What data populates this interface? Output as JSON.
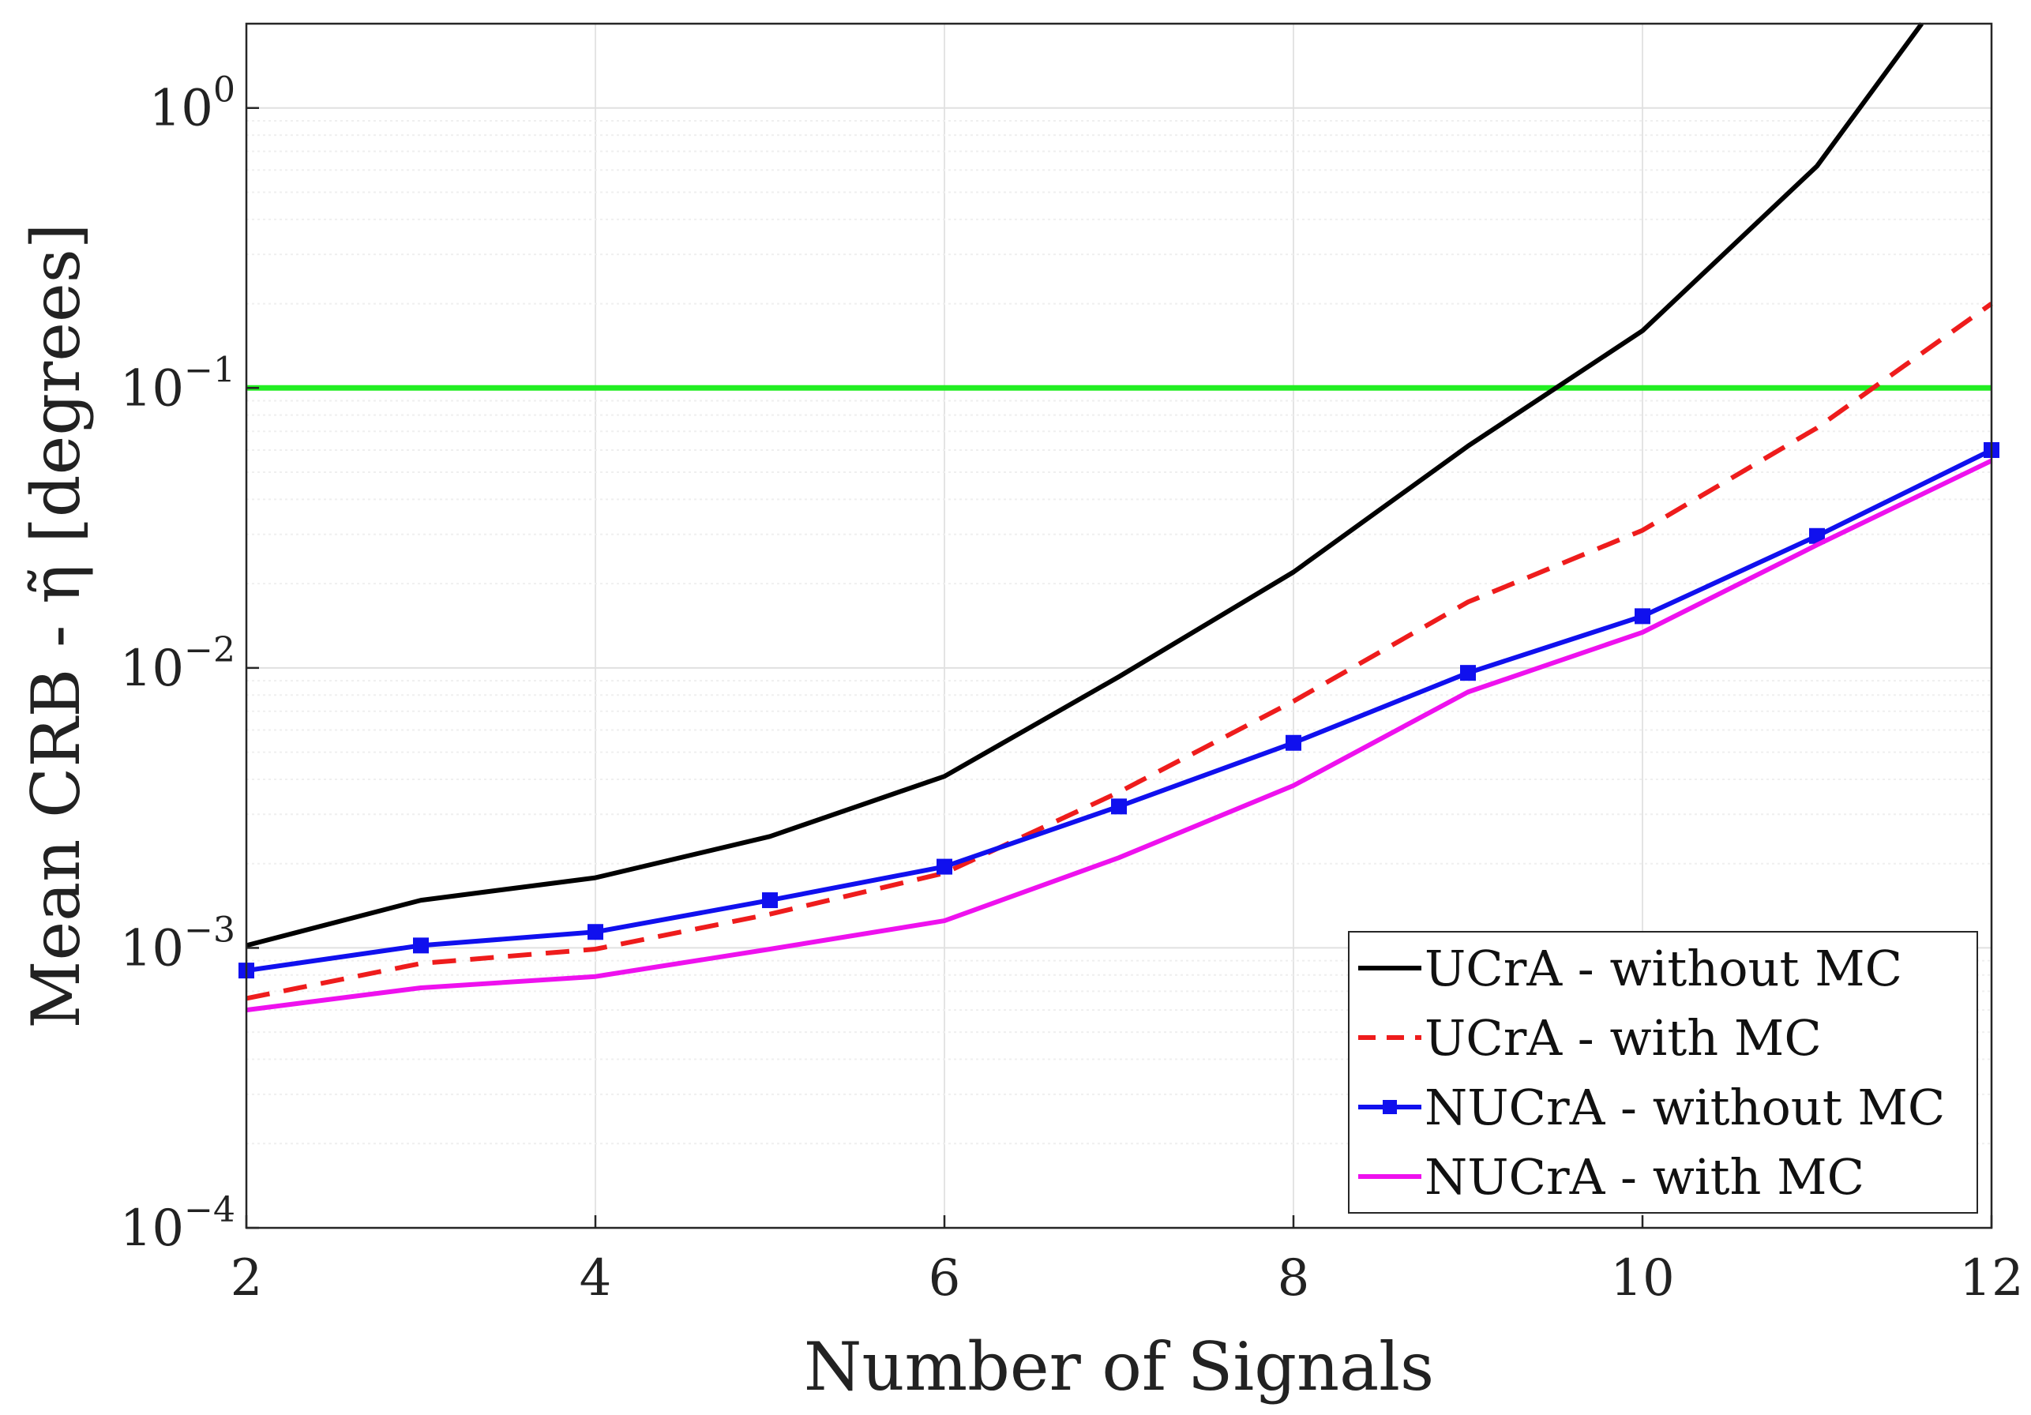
{
  "chart_data": {
    "type": "line",
    "title": "",
    "xlabel": "Number of Signals",
    "ylabel": "Mean CRB - η̃ [degrees]",
    "xlim": [
      2,
      12
    ],
    "ylim": [
      0.0001,
      2
    ],
    "yscale": "log",
    "grid": true,
    "x_ticks": [
      {
        "value": 2,
        "label": "2"
      },
      {
        "value": 4,
        "label": "4"
      },
      {
        "value": 6,
        "label": "6"
      },
      {
        "value": 8,
        "label": "8"
      },
      {
        "value": 10,
        "label": "10"
      },
      {
        "value": 12,
        "label": "12"
      }
    ],
    "y_ticks": [
      {
        "value": 1,
        "base": "10",
        "exp": "0"
      },
      {
        "value": 0.1,
        "base": "10",
        "exp": "−1"
      },
      {
        "value": 0.01,
        "base": "10",
        "exp": "−2"
      },
      {
        "value": 0.001,
        "base": "10",
        "exp": "−3"
      },
      {
        "value": 0.0001,
        "base": "10",
        "exp": "−4"
      }
    ],
    "reference_line": {
      "value": 0.1,
      "color": "#22ee22"
    },
    "legend_position": "bottom-right",
    "series": [
      {
        "name": "UCrA - without MC",
        "color": "#000000",
        "style": "solid",
        "marker": "none",
        "x": [
          2,
          3,
          4,
          5,
          6,
          7,
          8,
          9,
          10,
          11,
          11.6
        ],
        "values": [
          0.00102,
          0.00148,
          0.00178,
          0.0025,
          0.0041,
          0.0093,
          0.022,
          0.062,
          0.16,
          0.62,
          2.0
        ]
      },
      {
        "name": "UCrA - with MC",
        "color": "#ee1c1c",
        "style": "dashed",
        "marker": "none",
        "x": [
          2,
          3,
          4,
          5,
          6,
          7,
          8,
          9,
          10,
          11,
          12
        ],
        "values": [
          0.00066,
          0.00088,
          0.00099,
          0.00132,
          0.00185,
          0.0036,
          0.0076,
          0.0172,
          0.031,
          0.072,
          0.2
        ]
      },
      {
        "name": "NUCrA - without MC",
        "color": "#1010ee",
        "style": "solid",
        "marker": "square",
        "x": [
          2,
          3,
          4,
          5,
          6,
          7,
          8,
          9,
          10,
          11,
          12
        ],
        "values": [
          0.00083,
          0.00102,
          0.00114,
          0.00148,
          0.00195,
          0.0032,
          0.0054,
          0.0096,
          0.0153,
          0.0296,
          0.06
        ]
      },
      {
        "name": "NUCrA - with MC",
        "color": "#ee11ee",
        "style": "solid",
        "marker": "none",
        "x": [
          2,
          3,
          4,
          5,
          6,
          7,
          8,
          9,
          10,
          11,
          12
        ],
        "values": [
          0.0006,
          0.00072,
          0.00079,
          0.00099,
          0.00125,
          0.0021,
          0.0038,
          0.0082,
          0.0134,
          0.0275,
          0.055
        ]
      }
    ]
  }
}
